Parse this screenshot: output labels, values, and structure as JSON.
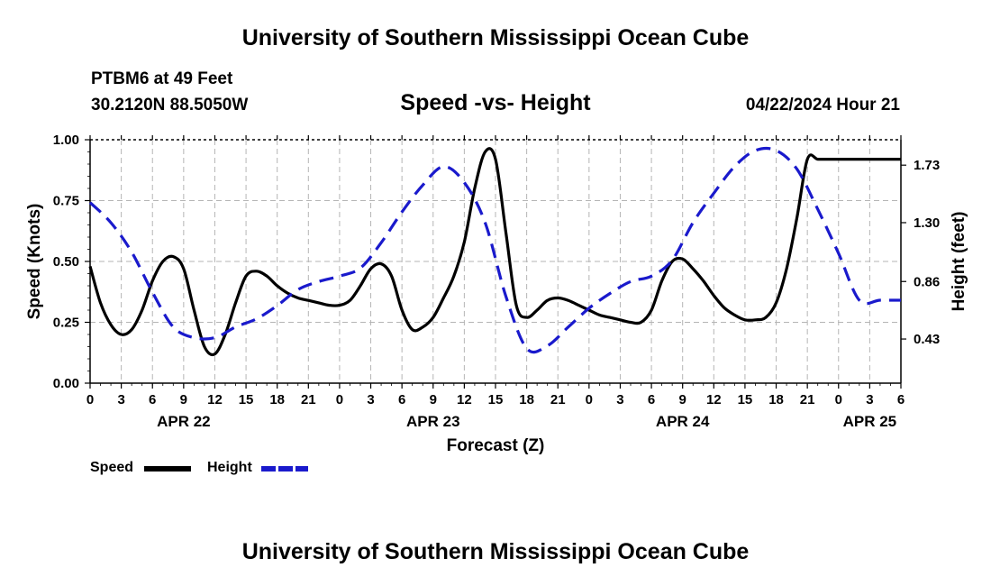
{
  "header": {
    "title": "University of Southern Mississippi Ocean Cube",
    "station": "PTBM6 at 49 Feet",
    "coords": "30.2120N  88.5050W",
    "subtitle": "Speed -vs- Height",
    "datetime": "04/22/2024 Hour 21"
  },
  "footer": {
    "title": "University of Southern Mississippi Ocean Cube"
  },
  "legend": {
    "speed_label": "Speed",
    "height_label": "Height",
    "speed_color": "#000000",
    "height_color": "#1a1acc"
  },
  "chart_data": {
    "type": "line",
    "title": "Speed -vs- Height",
    "xlabel": "Forecast (Z)",
    "ylabel": "Speed (Knots)",
    "y2label": "Height (feet)",
    "x_unit": "hours from APR 22 00Z",
    "xlim": [
      0,
      78
    ],
    "ylim": [
      0,
      1
    ],
    "y2lim": [
      0.1,
      1.92
    ],
    "x_tick_hours": [
      0,
      3,
      6,
      9,
      12,
      15,
      18,
      21,
      24,
      27,
      30,
      33,
      36,
      39,
      42,
      45,
      48,
      51,
      54,
      57,
      60,
      63,
      66,
      69,
      72,
      75,
      78
    ],
    "x_tick_labels": [
      "0",
      "3",
      "6",
      "9",
      "12",
      "15",
      "18",
      "21",
      "0",
      "3",
      "6",
      "9",
      "12",
      "15",
      "18",
      "21",
      "0",
      "3",
      "6",
      "9",
      "12",
      "15",
      "18",
      "21",
      "0",
      "3",
      "6"
    ],
    "date_labels": [
      {
        "hour": 9,
        "label": "APR 22"
      },
      {
        "hour": 33,
        "label": "APR 23"
      },
      {
        "hour": 57,
        "label": "APR 24"
      },
      {
        "hour": 75,
        "label": "APR 25"
      }
    ],
    "y_ticks": [
      0,
      0.25,
      0.5,
      0.75,
      1
    ],
    "y_tick_labels": [
      "0.00",
      "0.25",
      "0.50",
      "0.75",
      "1.00"
    ],
    "y2_ticks": [
      0.43,
      0.86,
      1.3,
      1.73
    ],
    "y2_tick_labels": [
      "0.43",
      "0.86",
      "1.30",
      "1.73"
    ],
    "grid": true,
    "series": [
      {
        "name": "Speed",
        "axis": "left",
        "color": "#000000",
        "dash": "solid",
        "x": [
          0,
          1,
          2,
          3,
          4,
          5,
          6,
          7,
          8,
          9,
          10,
          11,
          12,
          13,
          14,
          15,
          16,
          17,
          18,
          19,
          20,
          21,
          22,
          23,
          24,
          25,
          26,
          27,
          28,
          29,
          30,
          31,
          32,
          33,
          34,
          35,
          36,
          37,
          38,
          39,
          40,
          41,
          42,
          43,
          44,
          45,
          46,
          47,
          48,
          49,
          50,
          51,
          52,
          53,
          54,
          55,
          56,
          57,
          58,
          59,
          60,
          61,
          62,
          63,
          64,
          65,
          66,
          67,
          68,
          69,
          70,
          71,
          72,
          73,
          74,
          75,
          76,
          77,
          78
        ],
        "y": [
          0.48,
          0.33,
          0.24,
          0.2,
          0.22,
          0.3,
          0.42,
          0.5,
          0.52,
          0.47,
          0.3,
          0.15,
          0.12,
          0.2,
          0.33,
          0.44,
          0.46,
          0.44,
          0.4,
          0.37,
          0.35,
          0.34,
          0.33,
          0.32,
          0.32,
          0.34,
          0.4,
          0.47,
          0.49,
          0.44,
          0.3,
          0.22,
          0.23,
          0.27,
          0.35,
          0.44,
          0.58,
          0.8,
          0.95,
          0.92,
          0.62,
          0.32,
          0.27,
          0.3,
          0.34,
          0.35,
          0.34,
          0.32,
          0.3,
          0.28,
          0.27,
          0.26,
          0.25,
          0.25,
          0.3,
          0.42,
          0.5,
          0.51,
          0.47,
          0.42,
          0.36,
          0.31,
          0.28,
          0.26,
          0.26,
          0.27,
          0.33,
          0.47,
          0.68,
          0.92,
          0.92,
          0.92,
          0.92,
          0.92,
          0.92,
          0.92,
          0.92,
          0.92,
          0.92
        ]
      },
      {
        "name": "Height",
        "axis": "right",
        "color": "#1a1acc",
        "dash": "dashed",
        "x": [
          0,
          2,
          4,
          6,
          8,
          10,
          12,
          14,
          16,
          18,
          20,
          22,
          24,
          26,
          28,
          30,
          32,
          34,
          36,
          38,
          40,
          42,
          44,
          46,
          48,
          50,
          52,
          54,
          56,
          58,
          60,
          62,
          64,
          66,
          68,
          70,
          72,
          74,
          76,
          78
        ],
        "y": [
          1.45,
          1.3,
          1.08,
          0.78,
          0.52,
          0.44,
          0.44,
          0.52,
          0.58,
          0.68,
          0.8,
          0.86,
          0.9,
          0.96,
          1.15,
          1.38,
          1.58,
          1.72,
          1.6,
          1.3,
          0.75,
          0.36,
          0.38,
          0.52,
          0.66,
          0.77,
          0.86,
          0.9,
          1.02,
          1.3,
          1.52,
          1.72,
          1.84,
          1.84,
          1.7,
          1.4,
          1.07,
          0.72,
          0.72,
          0.72
        ]
      }
    ]
  }
}
